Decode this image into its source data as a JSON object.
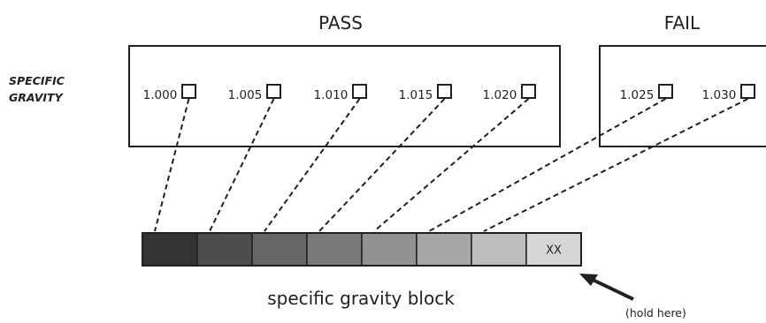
{
  "diagram": {
    "header_pass": "PASS",
    "header_fail": "FAIL",
    "row_label": [
      "SPECIFIC",
      "GRAVITY"
    ],
    "pass_values": [
      "1.000",
      "1.005",
      "1.010",
      "1.015",
      "1.020"
    ],
    "fail_values": [
      "1.025",
      "1.030"
    ],
    "strip_cells": [
      {
        "color": "#333333",
        "text": ""
      },
      {
        "color": "#4d4d4d",
        "text": ""
      },
      {
        "color": "#666666",
        "text": ""
      },
      {
        "color": "#7a7a7a",
        "text": ""
      },
      {
        "color": "#919191",
        "text": ""
      },
      {
        "color": "#a7a7a7",
        "text": ""
      },
      {
        "color": "#bebebe",
        "text": ""
      },
      {
        "color": "#d6d6d6",
        "text": "XX"
      }
    ],
    "caption": "specific gravity block",
    "hold_label": "(hold here)"
  }
}
